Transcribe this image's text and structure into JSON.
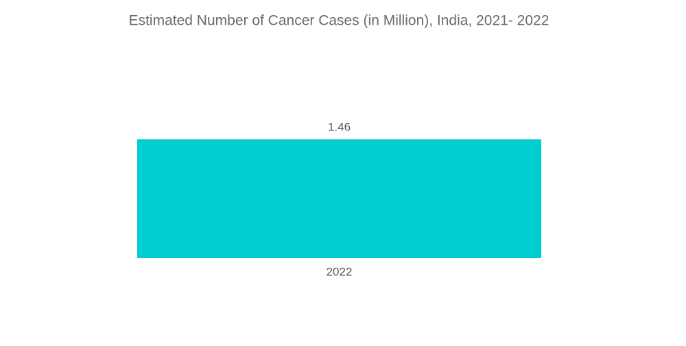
{
  "chart_data": {
    "type": "bar",
    "title": "Estimated Number of Cancer Cases (in Million), India, 2021- 2022",
    "categories": [
      "2022"
    ],
    "values": [
      1.46
    ],
    "color": "#00ced1"
  }
}
